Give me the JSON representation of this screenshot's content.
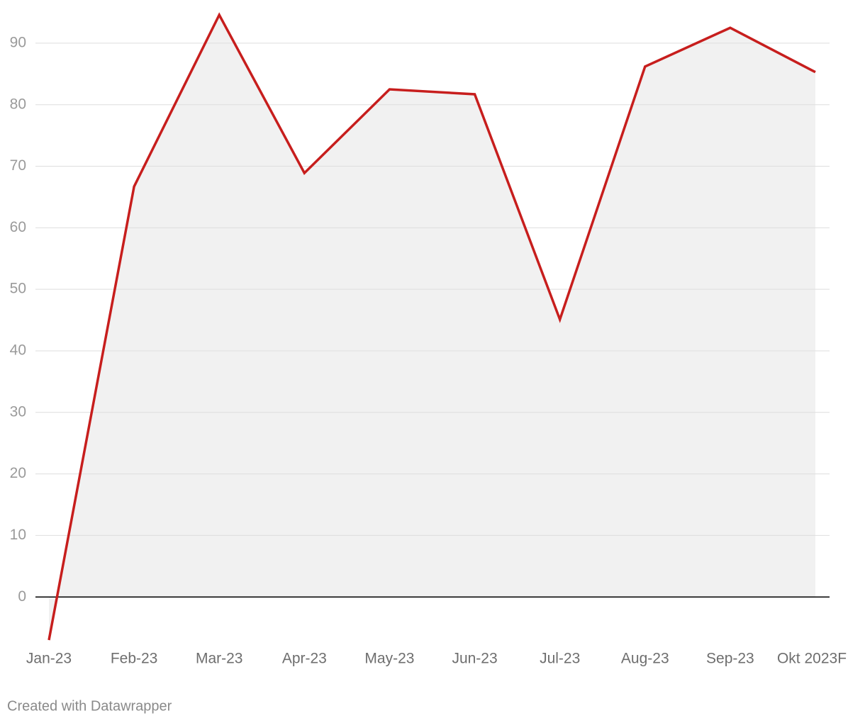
{
  "chart_data": {
    "type": "area-line",
    "categories": [
      "Jan-23",
      "Feb-23",
      "Mar-23",
      "Apr-23",
      "May-23",
      "Jun-23",
      "Jul-23",
      "Aug-23",
      "Sep-23",
      "Okt 2023F"
    ],
    "values": [
      -7.0,
      66.7,
      94.6,
      68.9,
      82.5,
      81.7,
      45.1,
      86.2,
      92.5,
      85.3
    ],
    "color": "#c71e1d",
    "area_color": "#f1f1f1",
    "ylim": [
      -7,
      94.6
    ],
    "yticks": [
      0,
      10,
      20,
      30,
      40,
      50,
      60,
      70,
      80,
      90
    ],
    "grid": true,
    "footer": "Created with Datawrapper"
  }
}
